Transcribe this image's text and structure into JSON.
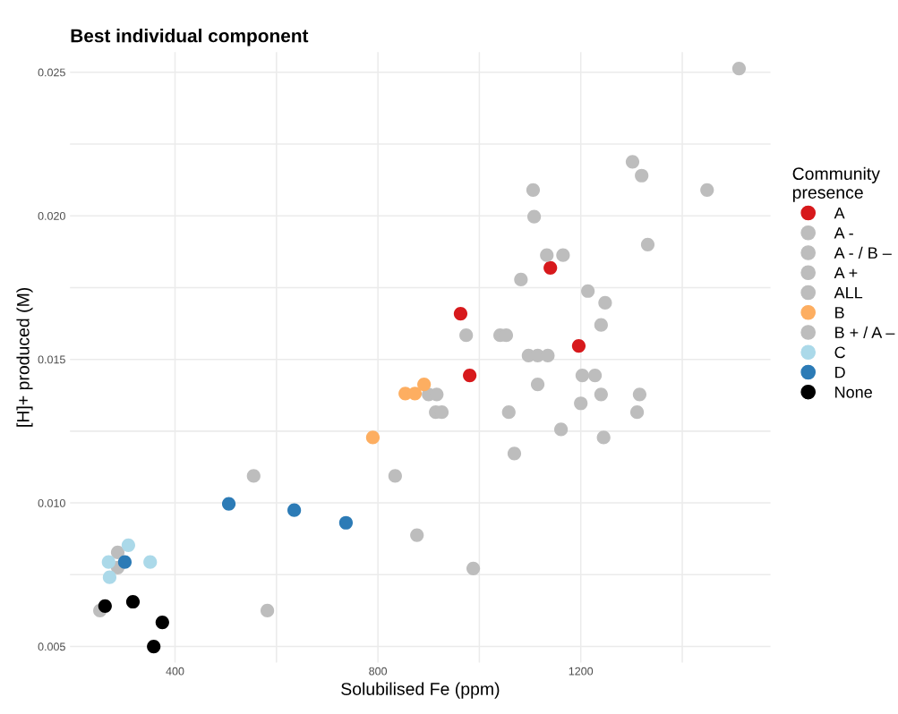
{
  "chart_data": {
    "type": "scatter",
    "title": "Best individual component",
    "xlabel": "Solubilised Fe (ppm)",
    "ylabel": "[H]+ produced (M)",
    "legend_title": "Community\npresence",
    "legend": "right",
    "grid": true,
    "marker": "circle",
    "xlim": [
      193,
      1574
    ],
    "ylim": [
      0.00444,
      0.0257
    ],
    "xticks": [
      400,
      {
        "value": 600,
        "label": null
      },
      800,
      {
        "value": 1000,
        "label": null
      },
      1200,
      {
        "value": 1400,
        "label": null
      }
    ],
    "yticks": [
      0.005,
      {
        "value": 0.0075,
        "label": null
      },
      "0.010",
      {
        "value": 0.0125,
        "label": null
      },
      0.015,
      {
        "value": 0.0175,
        "label": null
      },
      "0.020",
      {
        "value": 0.0225,
        "label": null
      },
      0.025
    ],
    "series": [
      {
        "name": "A",
        "color": "#d7191c",
        "x": [
          1140,
          963,
          981,
          1196
        ],
        "values": [
          0.01819,
          0.01659,
          0.01444,
          0.01547
        ]
      },
      {
        "name": "A -",
        "color": "#bdbdbd",
        "x": [
          1512,
          1302,
          1320,
          1449,
          1106,
          1108,
          1332,
          1133,
          1165,
          1082,
          1214,
          1248,
          1240,
          974,
          1041,
          1053,
          1097,
          1115,
          1135,
          1115,
          1203,
          1228,
          900,
          916,
          914,
          926,
          1058,
          1200,
          1240,
          1316,
          1311,
          1161,
          1245,
          1069,
          834,
          555,
          877,
          988,
          582,
          252,
          287,
          287
        ],
        "values": [
          0.02513,
          0.02188,
          0.0214,
          0.0209,
          0.0209,
          0.01997,
          0.019,
          0.01863,
          0.01863,
          0.01778,
          0.01738,
          0.01697,
          0.0162,
          0.01584,
          0.01584,
          0.01584,
          0.01513,
          0.01513,
          0.01513,
          0.01413,
          0.01444,
          0.01444,
          0.01378,
          0.01378,
          0.01316,
          0.01316,
          0.01316,
          0.01347,
          0.01378,
          0.01378,
          0.01316,
          0.01256,
          0.01228,
          0.01172,
          0.01094,
          0.01094,
          0.00888,
          0.00772,
          0.00625,
          0.00625,
          0.00828,
          0.00775
        ]
      },
      {
        "name": "A - / B –",
        "color": "#bdbdbd"
      },
      {
        "name": "A +",
        "color": "#bdbdbd"
      },
      {
        "name": "ALL",
        "color": "#bdbdbd"
      },
      {
        "name": "B",
        "color": "#fdae61",
        "x": [
          790,
          854,
          873,
          891
        ],
        "values": [
          0.01228,
          0.01381,
          0.01381,
          0.01413
        ]
      },
      {
        "name": "B + / A –",
        "color": "#bdbdbd"
      },
      {
        "name": "C",
        "color": "#abd9e9",
        "x": [
          269,
          271,
          308,
          351
        ],
        "values": [
          0.00794,
          0.00741,
          0.00853,
          0.00794
        ]
      },
      {
        "name": "D",
        "color": "#2c7bb6",
        "x": [
          301,
          506,
          635,
          737
        ],
        "values": [
          0.00794,
          0.00997,
          0.00975,
          0.00931
        ]
      },
      {
        "name": "None",
        "color": "#000000",
        "x": [
          262,
          317,
          375,
          358
        ],
        "values": [
          0.00641,
          0.00656,
          0.00584,
          0.005
        ]
      }
    ]
  }
}
